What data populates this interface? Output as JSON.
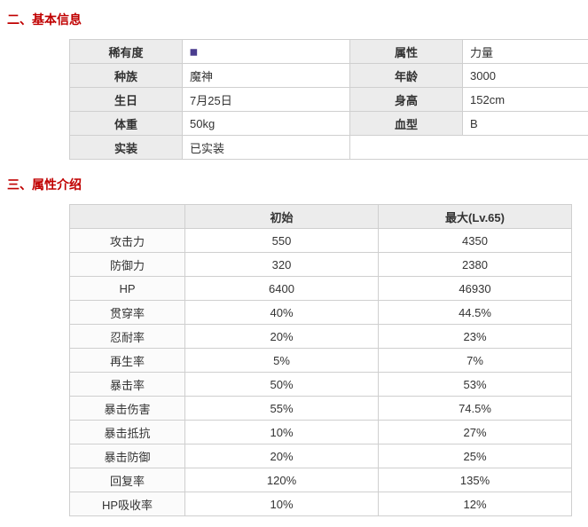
{
  "sections": {
    "basic": "二、基本信息",
    "stats": "三、属性介绍"
  },
  "info": {
    "labels": {
      "rarity": "稀有度",
      "attribute": "属性",
      "race": "种族",
      "age": "年龄",
      "birthday": "生日",
      "height": "身高",
      "weight": "体重",
      "blood": "血型",
      "implemented": "实装"
    },
    "values": {
      "attribute": "力量",
      "race": "魔神",
      "age": "3000",
      "birthday": "7月25日",
      "height": "152cm",
      "weight": "50kg",
      "blood": "B",
      "implemented": "已实装"
    },
    "rarity_icon_color": "#4a3d8f"
  },
  "stats": {
    "headers": {
      "name_blank": "",
      "initial": "初始",
      "max": "最大(Lv.65)"
    },
    "rows": [
      {
        "name": "攻击力",
        "init": "550",
        "max": "4350"
      },
      {
        "name": "防御力",
        "init": "320",
        "max": "2380"
      },
      {
        "name": "HP",
        "init": "6400",
        "max": "46930"
      },
      {
        "name": "贯穿率",
        "init": "40%",
        "max": "44.5%"
      },
      {
        "name": "忍耐率",
        "init": "20%",
        "max": "23%"
      },
      {
        "name": "再生率",
        "init": "5%",
        "max": "7%"
      },
      {
        "name": "暴击率",
        "init": "50%",
        "max": "53%"
      },
      {
        "name": "暴击伤害",
        "init": "55%",
        "max": "74.5%"
      },
      {
        "name": "暴击抵抗",
        "init": "10%",
        "max": "27%"
      },
      {
        "name": "暴击防御",
        "init": "20%",
        "max": "25%"
      },
      {
        "name": "回复率",
        "init": "120%",
        "max": "135%"
      },
      {
        "name": "HP吸收率",
        "init": "10%",
        "max": "12%"
      }
    ]
  },
  "style": {
    "heading_color": "#c00000",
    "border_color": "#cfcfcf",
    "label_bg": "#ececec",
    "value_bg": "#ffffff",
    "font_size_body": 13,
    "font_size_heading": 14
  }
}
